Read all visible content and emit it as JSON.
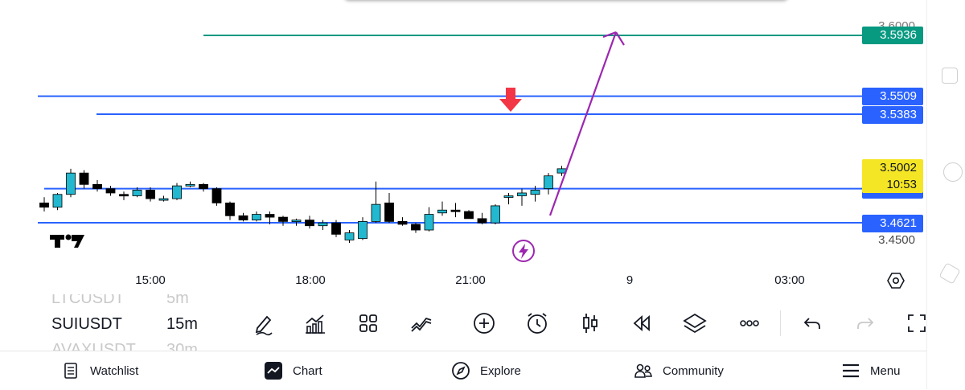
{
  "chart_data": {
    "type": "candlestick",
    "symbol": "SUIUSDT",
    "interval": "15m",
    "x_ticks": [
      "15:00",
      "18:00",
      "21:00",
      "9",
      "03:00"
    ],
    "y_ticks": [
      "3.6000",
      "3.4500"
    ],
    "ylim": [
      3.44,
      3.61
    ],
    "candles": [
      [
        3.476,
        3.48,
        3.47,
        3.473
      ],
      [
        3.473,
        3.483,
        3.471,
        3.482
      ],
      [
        3.482,
        3.5,
        3.48,
        3.497
      ],
      [
        3.497,
        3.499,
        3.486,
        3.489
      ],
      [
        3.489,
        3.492,
        3.484,
        3.486
      ],
      [
        3.486,
        3.488,
        3.481,
        3.483
      ],
      [
        3.482,
        3.484,
        3.478,
        3.481
      ],
      [
        3.481,
        3.487,
        3.48,
        3.485
      ],
      [
        3.485,
        3.487,
        3.477,
        3.479
      ],
      [
        3.479,
        3.481,
        3.477,
        3.479
      ],
      [
        3.479,
        3.49,
        3.478,
        3.488
      ],
      [
        3.488,
        3.491,
        3.487,
        3.489
      ],
      [
        3.489,
        3.49,
        3.484,
        3.486
      ],
      [
        3.486,
        3.487,
        3.474,
        3.476
      ],
      [
        3.476,
        3.477,
        3.464,
        3.467
      ],
      [
        3.467,
        3.469,
        3.463,
        3.464
      ],
      [
        3.464,
        3.47,
        3.463,
        3.468
      ],
      [
        3.468,
        3.47,
        3.461,
        3.466
      ],
      [
        3.466,
        3.467,
        3.46,
        3.463
      ],
      [
        3.463,
        3.465,
        3.46,
        3.464
      ],
      [
        3.464,
        3.467,
        3.458,
        3.46
      ],
      [
        3.46,
        3.464,
        3.457,
        3.462
      ],
      [
        3.462,
        3.464,
        3.452,
        3.454
      ],
      [
        3.45,
        3.457,
        3.448,
        3.455
      ],
      [
        3.451,
        3.466,
        3.45,
        3.463
      ],
      [
        3.463,
        3.491,
        3.462,
        3.475
      ],
      [
        3.476,
        3.483,
        3.462,
        3.463
      ],
      [
        3.463,
        3.466,
        3.46,
        3.461
      ],
      [
        3.461,
        3.462,
        3.455,
        3.457
      ],
      [
        3.457,
        3.473,
        3.456,
        3.468
      ],
      [
        3.469,
        3.477,
        3.467,
        3.471
      ],
      [
        3.471,
        3.476,
        3.466,
        3.47
      ],
      [
        3.47,
        3.471,
        3.465,
        3.465
      ],
      [
        3.465,
        3.469,
        3.461,
        3.462
      ],
      [
        3.462,
        3.475,
        3.461,
        3.474
      ],
      [
        3.48,
        3.483,
        3.475,
        3.481
      ],
      [
        3.481,
        3.486,
        3.474,
        3.483
      ],
      [
        3.482,
        3.488,
        3.477,
        3.485
      ],
      [
        3.486,
        3.497,
        3.482,
        3.495
      ],
      [
        3.497,
        3.502,
        3.495,
        3.5
      ]
    ],
    "level_lines": [
      {
        "value": 3.5936,
        "label": "3.5936",
        "color": "#089981"
      },
      {
        "value": 3.5509,
        "label": "3.5509",
        "color": "#2962ff"
      },
      {
        "value": 3.5383,
        "label": "3.5383",
        "color": "#2962ff"
      },
      {
        "value": 3.486,
        "label": "",
        "color": "#2962ff"
      },
      {
        "value": 3.4621,
        "label": "3.4621",
        "color": "#2962ff"
      }
    ],
    "current_price": {
      "value": 3.5002,
      "label": "3.5002",
      "countdown": "10:53",
      "color": "#f5e625"
    },
    "colors": {
      "up": "#22b8cf",
      "down": "#000000"
    }
  },
  "chart_meta": {
    "watermark": "TV",
    "bolt_icon": "lightning-icon",
    "settings_icon": "hexagon-settings-icon"
  },
  "watchlist_strip": {
    "prev": {
      "symbol": "LTCUSDT",
      "interval": "5m"
    },
    "current": {
      "symbol": "SUIUSDT",
      "interval": "15m"
    },
    "next": {
      "symbol": "AVAXUSDT",
      "interval": "30m"
    }
  },
  "toolbar": {
    "icons": [
      "pen-icon",
      "indicators-icon",
      "grid-icon",
      "strategy-icon",
      "plus-circle-icon",
      "alarm-icon",
      "candles-icon",
      "replay-icon",
      "layers-icon",
      "more-icon",
      "undo-icon",
      "redo-icon",
      "fullscreen-icon"
    ]
  },
  "bottom_nav": {
    "watchlist": "Watchlist",
    "chart": "Chart",
    "explore": "Explore",
    "community": "Community",
    "menu": "Menu"
  }
}
